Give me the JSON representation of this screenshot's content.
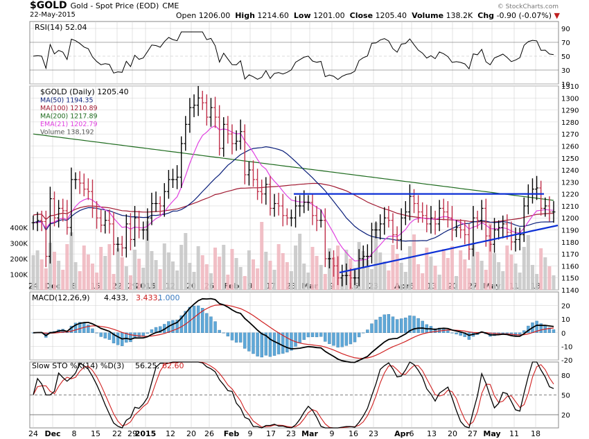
{
  "header": {
    "symbol": "$GOLD",
    "description": "Gold - Spot Price (EOD)",
    "exchange": "CME",
    "date": "22-May-2015",
    "open_label": "Open",
    "open": "1206.00",
    "high_label": "High",
    "high": "1214.60",
    "low_label": "Low",
    "low": "1201.00",
    "close_label": "Close",
    "close": "1205.40",
    "volume_label": "Volume",
    "volume": "138.2K",
    "chg_label": "Chg",
    "chg": "-0.90 (-0.07%)",
    "watermark": "© StockCharts.com"
  },
  "colors": {
    "ma50": "#0a1f7a",
    "ma100": "#a01830",
    "ma200": "#1e6b1e",
    "ema21": "#e040e0",
    "trend": "#0b2fd6",
    "up_bar": "#000000",
    "down_bar": "#c0304a",
    "vol_up": "#c8c8c8",
    "vol_down": "#f0b8c0",
    "histogram": "#5fa8d8",
    "macd": "#000000",
    "signal": "#d02020",
    "grid": "#d0d0d0"
  },
  "x_axis_labels": [
    "24",
    "Dec",
    "8",
    "15",
    "22",
    "29",
    "2015",
    "12",
    "20",
    "26",
    "Feb",
    "9",
    "17",
    "23",
    "Mar",
    "9",
    "16",
    "23",
    "Apr",
    "6",
    "13",
    "20",
    "27",
    "May",
    "11",
    "18"
  ],
  "legend": {
    "price": "$GOLD (Daily) 1205.40",
    "ma50": "MA(50) 1194.35",
    "ma100": "MA(100) 1210.89",
    "ma200": "MA(200) 1217.89",
    "ema21": "EMA(21) 1202.79",
    "volume": "Volume 138,192"
  },
  "rsi_legend": "RSI(14) 52.04",
  "macd_legend": {
    "prefix": "MACD(12,26,9)",
    "macd": "4.433",
    "signal": "3.433",
    "hist": "1.000"
  },
  "sto_legend": {
    "prefix": "Slow STO %K(14) %D(3)",
    "k": "56.25",
    "d": "62.60"
  },
  "chart_data": {
    "type": "candlestick",
    "dates": [
      "2014-11-24",
      "2014-11-25",
      "2014-11-26",
      "2014-11-28",
      "2014-12-01",
      "2014-12-02",
      "2014-12-03",
      "2014-12-04",
      "2014-12-05",
      "2014-12-08",
      "2014-12-09",
      "2014-12-10",
      "2014-12-11",
      "2014-12-12",
      "2014-12-15",
      "2014-12-16",
      "2014-12-17",
      "2014-12-18",
      "2014-12-19",
      "2014-12-22",
      "2014-12-23",
      "2014-12-24",
      "2014-12-26",
      "2014-12-29",
      "2014-12-30",
      "2014-12-31",
      "2015-01-02",
      "2015-01-05",
      "2015-01-06",
      "2015-01-07",
      "2015-01-08",
      "2015-01-09",
      "2015-01-12",
      "2015-01-13",
      "2015-01-14",
      "2015-01-15",
      "2015-01-16",
      "2015-01-20",
      "2015-01-21",
      "2015-01-22",
      "2015-01-23",
      "2015-01-26",
      "2015-01-27",
      "2015-01-28",
      "2015-01-29",
      "2015-01-30",
      "2015-02-02",
      "2015-02-03",
      "2015-02-04",
      "2015-02-05",
      "2015-02-06",
      "2015-02-09",
      "2015-02-10",
      "2015-02-11",
      "2015-02-12",
      "2015-02-13",
      "2015-02-17",
      "2015-02-18",
      "2015-02-19",
      "2015-02-20",
      "2015-02-23",
      "2015-02-24",
      "2015-02-25",
      "2015-02-26",
      "2015-02-27",
      "2015-03-02",
      "2015-03-03",
      "2015-03-04",
      "2015-03-05",
      "2015-03-06",
      "2015-03-09",
      "2015-03-10",
      "2015-03-11",
      "2015-03-12",
      "2015-03-13",
      "2015-03-16",
      "2015-03-17",
      "2015-03-18",
      "2015-03-19",
      "2015-03-20",
      "2015-03-23",
      "2015-03-24",
      "2015-03-25",
      "2015-03-26",
      "2015-03-27",
      "2015-03-30",
      "2015-03-31",
      "2015-04-01",
      "2015-04-02",
      "2015-04-06",
      "2015-04-07",
      "2015-04-08",
      "2015-04-09",
      "2015-04-10",
      "2015-04-13",
      "2015-04-14",
      "2015-04-15",
      "2015-04-16",
      "2015-04-17",
      "2015-04-20",
      "2015-04-21",
      "2015-04-22",
      "2015-04-23",
      "2015-04-24",
      "2015-04-27",
      "2015-04-28",
      "2015-04-29",
      "2015-04-30",
      "2015-05-01",
      "2015-05-04",
      "2015-05-05",
      "2015-05-06",
      "2015-05-07",
      "2015-05-08",
      "2015-05-11",
      "2015-05-12",
      "2015-05-13",
      "2015-05-14",
      "2015-05-15",
      "2015-05-18",
      "2015-05-19",
      "2015-05-20",
      "2015-05-21",
      "2015-05-22"
    ],
    "close": [
      1196,
      1198,
      1197,
      1168,
      1216,
      1200,
      1208,
      1206,
      1192,
      1232,
      1232,
      1229,
      1224,
      1222,
      1208,
      1200,
      1194,
      1198,
      1195,
      1178,
      1178,
      1175,
      1195,
      1182,
      1200,
      1190,
      1190,
      1200,
      1212,
      1212,
      1210,
      1222,
      1232,
      1232,
      1234,
      1262,
      1278,
      1292,
      1294,
      1300,
      1296,
      1284,
      1292,
      1284,
      1258,
      1278,
      1270,
      1262,
      1264,
      1272,
      1236,
      1240,
      1232,
      1222,
      1220,
      1228,
      1208,
      1212,
      1210,
      1202,
      1200,
      1200,
      1210,
      1210,
      1213,
      1213,
      1202,
      1198,
      1198,
      1166,
      1166,
      1160,
      1150,
      1152,
      1152,
      1150,
      1150,
      1166,
      1168,
      1168,
      1190,
      1190,
      1195,
      1200,
      1198,
      1186,
      1182,
      1200,
      1205,
      1218,
      1212,
      1205,
      1202,
      1195,
      1200,
      1195,
      1208,
      1205,
      1200,
      1190,
      1192,
      1190,
      1186,
      1174,
      1200,
      1198,
      1208,
      1185,
      1178,
      1190,
      1192,
      1195,
      1188,
      1180,
      1182,
      1186,
      1210,
      1220,
      1224,
      1225,
      1208,
      1210,
      1205,
      1205
    ],
    "ranges": {
      "price": [
        1140,
        1310
      ],
      "rsi": [
        10,
        100
      ],
      "macd": [
        -20,
        30
      ],
      "sto": [
        0,
        100
      ],
      "volume_ticks": [
        100,
        200,
        300,
        400
      ]
    },
    "y_ticks_price": [
      1140,
      1150,
      1160,
      1170,
      1180,
      1190,
      1200,
      1210,
      1220,
      1230,
      1240,
      1250,
      1260,
      1270,
      1280,
      1290,
      1300,
      1310
    ],
    "y_ticks_rsi": [
      10,
      30,
      50,
      70,
      90
    ],
    "y_ticks_macd": [
      -20,
      -10,
      0,
      10,
      20
    ],
    "y_ticks_sto": [
      20,
      50,
      80
    ],
    "volume_tick_labels": [
      "100K",
      "200K",
      "300K",
      "400K"
    ],
    "horizontal_resistance": 1220,
    "grid": true,
    "legend_position": "top-left"
  }
}
